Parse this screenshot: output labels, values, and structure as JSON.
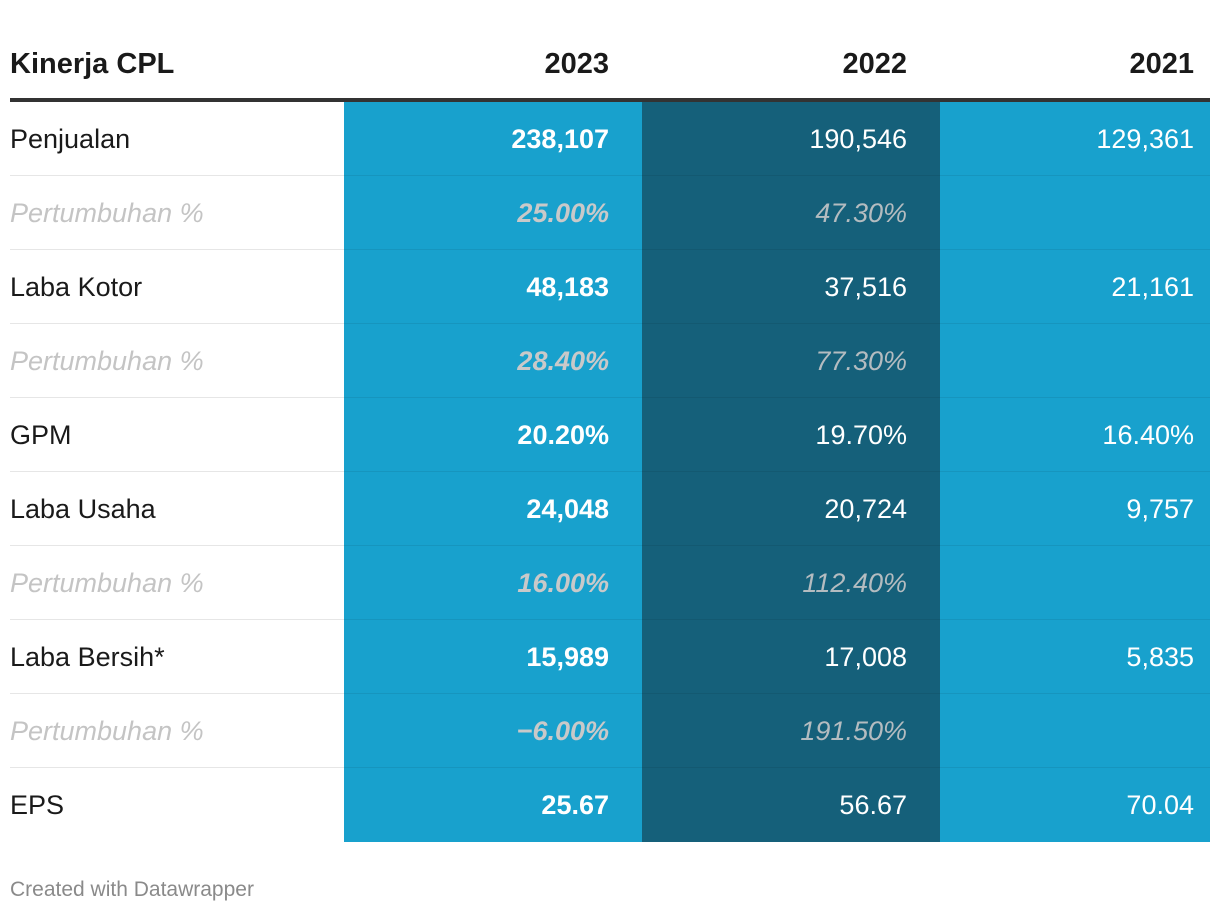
{
  "chart_data": {
    "type": "table",
    "title": "Kinerja CPL",
    "columns": [
      "Kinerja CPL",
      "2023",
      "2022",
      "2021"
    ],
    "rows": [
      {
        "label": "Penjualan",
        "values": [
          "238,107",
          "190,546",
          "129,361"
        ],
        "kind": "main"
      },
      {
        "label": "Pertumbuhan %",
        "values": [
          "25.00%",
          "47.30%",
          ""
        ],
        "kind": "growth"
      },
      {
        "label": "Laba Kotor",
        "values": [
          "48,183",
          "37,516",
          "21,161"
        ],
        "kind": "main"
      },
      {
        "label": "Pertumbuhan %",
        "values": [
          "28.40%",
          "77.30%",
          ""
        ],
        "kind": "growth"
      },
      {
        "label": "GPM",
        "values": [
          "20.20%",
          "19.70%",
          "16.40%"
        ],
        "kind": "main"
      },
      {
        "label": "Laba Usaha",
        "values": [
          "24,048",
          "20,724",
          "9,757"
        ],
        "kind": "main"
      },
      {
        "label": "Pertumbuhan %",
        "values": [
          "16.00%",
          "112.40%",
          ""
        ],
        "kind": "growth"
      },
      {
        "label": "Laba Bersih*",
        "values": [
          "15,989",
          "17,008",
          "5,835"
        ],
        "kind": "main"
      },
      {
        "label": "Pertumbuhan %",
        "values": [
          "−6.00%",
          "191.50%",
          ""
        ],
        "kind": "growth"
      },
      {
        "label": "EPS",
        "values": [
          "25.67",
          "56.67",
          "70.04"
        ],
        "kind": "main"
      }
    ]
  },
  "colors": {
    "col_2023": "#18a1cd",
    "col_2022": "#15607a",
    "col_2021": "#18a1cd"
  },
  "footer": "Created with Datawrapper"
}
